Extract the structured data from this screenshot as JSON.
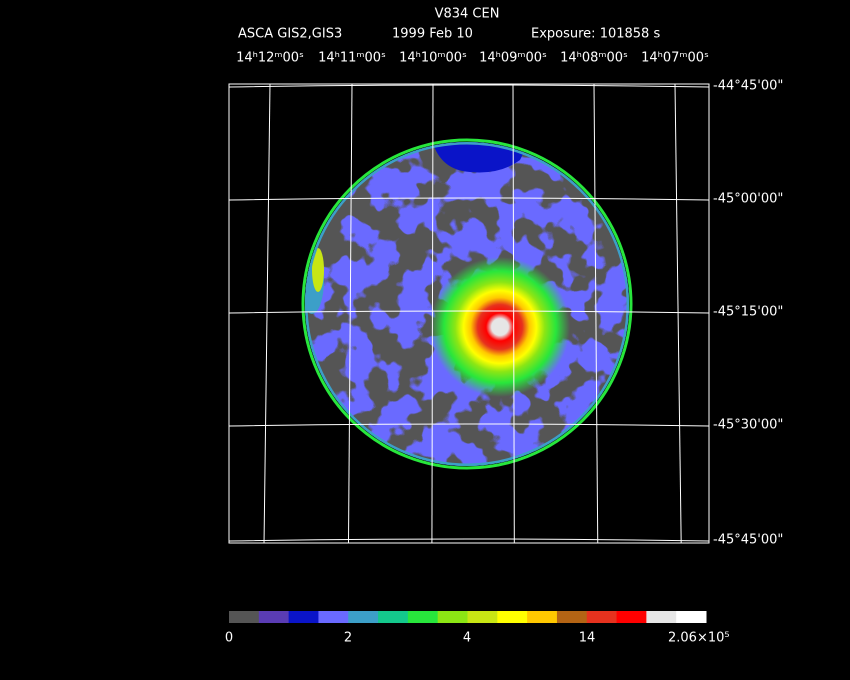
{
  "title": "V834 CEN",
  "subtitle": {
    "instrument": "ASCA GIS2,GIS3",
    "date": "1999 Feb 10",
    "exposure": "Exposure: 101858 s"
  },
  "ra_labels": [
    "14ʰ12ᵐ00ˢ",
    "14ʰ11ᵐ00ˢ",
    "14ʰ10ᵐ00ˢ",
    "14ʰ09ᵐ00ˢ",
    "14ʰ08ᵐ00ˢ",
    "14ʰ07ᵐ00ˢ"
  ],
  "dec_labels": [
    "-44°45'00\"",
    "-45°00'00\"",
    "-45°15'00\"",
    "-45°30'00\"",
    "-45°45'00\""
  ],
  "colorbar": {
    "colors": [
      "#555555",
      "#5a3cb4",
      "#0a14c8",
      "#6a6aff",
      "#3c9fc8",
      "#14c88c",
      "#28e63c",
      "#8ce614",
      "#c8e614",
      "#ffff00",
      "#ffc800",
      "#b46414",
      "#e6321e",
      "#ff0000",
      "#e6e6e6",
      "#ffffff"
    ],
    "labels": [
      "0",
      "2",
      "4",
      "14",
      "2.06×10⁵"
    ]
  }
}
